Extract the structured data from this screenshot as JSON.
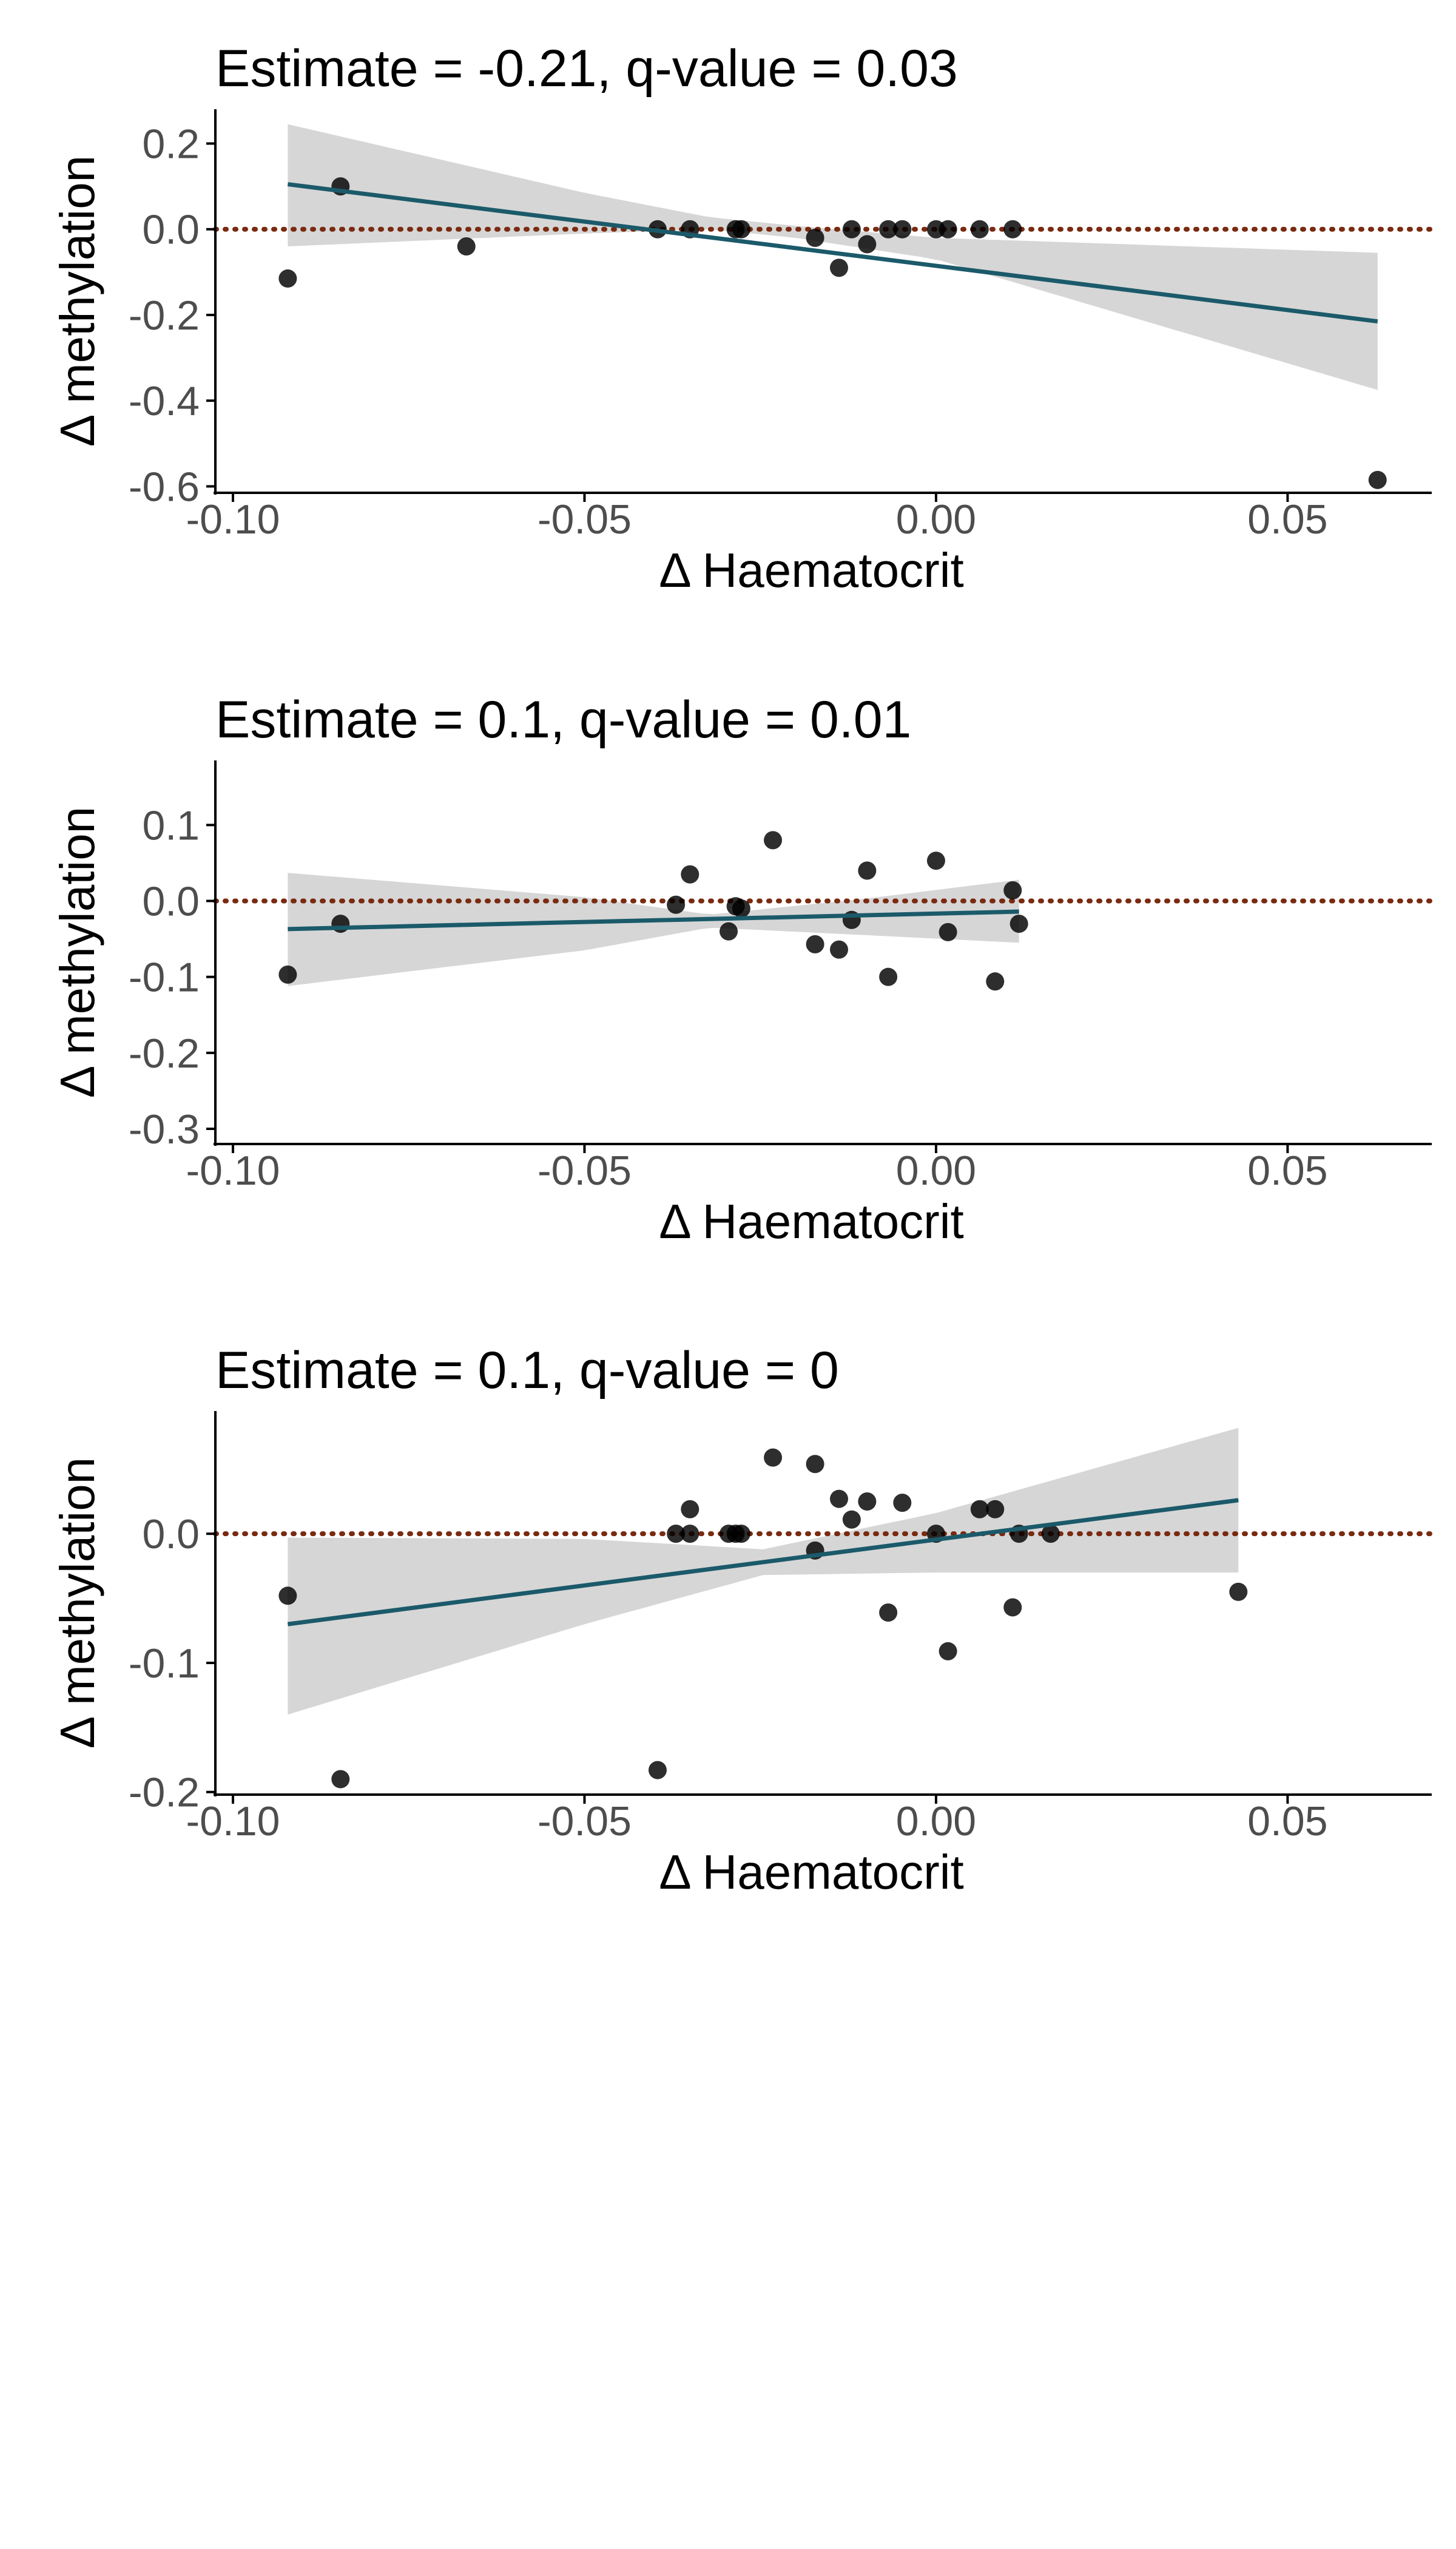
{
  "colors": {
    "background": "#ffffff",
    "points": "#000000",
    "fit_line": "#1b5a6a",
    "ci_band": "#d6d6d6",
    "zero_line": "#7a2a10",
    "axis": "#000000",
    "tick_label": "#4d4d4d",
    "title": "#000000"
  },
  "chart_data": [
    {
      "type": "scatter",
      "title": "Estimate = -0.21, q-value = 0.03",
      "xlabel": "Δ Haematocrit",
      "ylabel": "Δ methylation",
      "xlim": [
        -0.1025,
        0.0705
      ],
      "ylim": [
        -0.615,
        0.28
      ],
      "xticks": [
        -0.1,
        -0.05,
        0.0,
        0.05
      ],
      "xtick_labels": [
        "-0.10",
        "-0.05",
        "0.00",
        "0.05"
      ],
      "yticks": [
        0.2,
        0.0,
        -0.2,
        -0.4,
        -0.6
      ],
      "ytick_labels": [
        "0.2",
        "0.0",
        "-0.2",
        "-0.4",
        "-0.6"
      ],
      "grid": false,
      "reference_line_y": 0,
      "points": {
        "x": [
          -0.0922,
          -0.0847,
          -0.0668,
          -0.0396,
          -0.035,
          -0.0285,
          -0.0277,
          -0.0172,
          -0.0138,
          -0.012,
          -0.0098,
          -0.0068,
          -0.0048,
          0.0,
          0.0017,
          0.0062,
          0.0109,
          0.0628
        ],
        "y": [
          -0.115,
          0.1,
          -0.04,
          0.0,
          0.0,
          0.0,
          0.0,
          -0.02,
          -0.09,
          0.0,
          -0.035,
          0.0,
          0.0,
          0.0,
          0.0,
          0.0,
          0.0,
          -0.585
        ]
      },
      "fit": {
        "x": [
          -0.0922,
          0.0628
        ],
        "y": [
          0.105,
          -0.215
        ]
      },
      "ci": {
        "x": [
          -0.0922,
          -0.05,
          -0.0322,
          -0.02,
          0.0,
          0.0628
        ],
        "lower": [
          -0.04,
          -0.01,
          0.0,
          -0.02,
          -0.07,
          -0.375
        ],
        "upper": [
          0.245,
          0.085,
          0.028,
          0.008,
          -0.02,
          -0.055
        ]
      }
    },
    {
      "type": "scatter",
      "title": "Estimate = 0.1, q-value = 0.01",
      "xlabel": "Δ Haematocrit",
      "ylabel": "Δ methylation",
      "xlim": [
        -0.1025,
        0.0705
      ],
      "ylim": [
        -0.32,
        0.185
      ],
      "xticks": [
        -0.1,
        -0.05,
        0.0,
        0.05
      ],
      "xtick_labels": [
        "-0.10",
        "-0.05",
        "0.00",
        "0.05"
      ],
      "yticks": [
        0.1,
        0.0,
        -0.1,
        -0.2,
        -0.3
      ],
      "ytick_labels": [
        "0.1",
        "0.0",
        "-0.1",
        "-0.2",
        "-0.3"
      ],
      "grid": false,
      "reference_line_y": 0,
      "points": {
        "x": [
          -0.0922,
          -0.0847,
          -0.037,
          -0.035,
          -0.0295,
          -0.0285,
          -0.0277,
          -0.0232,
          -0.0172,
          -0.0138,
          -0.012,
          -0.0098,
          -0.0068,
          0.0,
          0.0017,
          0.0084,
          0.0109,
          0.0118
        ],
        "y": [
          -0.097,
          -0.03,
          -0.005,
          0.035,
          -0.04,
          -0.007,
          -0.01,
          0.08,
          -0.057,
          -0.064,
          -0.025,
          0.04,
          -0.1,
          0.053,
          -0.041,
          -0.106,
          0.014,
          -0.03
        ]
      },
      "fit": {
        "x": [
          -0.0922,
          0.0118
        ],
        "y": [
          -0.037,
          -0.014
        ]
      },
      "ci": {
        "x": [
          -0.0922,
          -0.05,
          -0.0322,
          -0.01,
          0.0118
        ],
        "lower": [
          -0.112,
          -0.065,
          -0.035,
          -0.045,
          -0.055
        ],
        "upper": [
          0.037,
          0.005,
          -0.018,
          0.003,
          0.028
        ]
      }
    },
    {
      "type": "scatter",
      "title": "Estimate = 0.1, q-value = 0",
      "xlabel": "Δ Haematocrit",
      "ylabel": "Δ methylation",
      "xlim": [
        -0.1025,
        0.0705
      ],
      "ylim": [
        -0.202,
        0.095
      ],
      "xticks": [
        -0.1,
        -0.05,
        0.0,
        0.05
      ],
      "xtick_labels": [
        "-0.10",
        "-0.05",
        "0.00",
        "0.05"
      ],
      "yticks": [
        0.0,
        -0.1,
        -0.2
      ],
      "ytick_labels": [
        "0.0",
        "-0.1",
        "-0.2"
      ],
      "grid": false,
      "reference_line_y": 0,
      "points": {
        "x": [
          -0.0922,
          -0.0847,
          -0.0396,
          -0.037,
          -0.035,
          -0.035,
          -0.0295,
          -0.0285,
          -0.0277,
          -0.0232,
          -0.0172,
          -0.0172,
          -0.0138,
          -0.012,
          -0.0098,
          -0.0068,
          -0.0048,
          0.0,
          0.0017,
          0.0062,
          0.0084,
          0.0109,
          0.0118,
          0.0163,
          0.043
        ],
        "y": [
          -0.048,
          -0.19,
          -0.183,
          0.0,
          0.019,
          0.0,
          0.0,
          0.0,
          0.0,
          0.059,
          -0.013,
          0.054,
          0.027,
          0.011,
          0.025,
          -0.061,
          0.024,
          0.0,
          -0.091,
          0.019,
          0.019,
          -0.057,
          0.0,
          0.0,
          -0.045
        ]
      },
      "fit": {
        "x": [
          -0.0922,
          0.043
        ],
        "y": [
          -0.07,
          0.026
        ]
      },
      "ci": {
        "x": [
          -0.0922,
          -0.05,
          -0.0246,
          0.0,
          0.043
        ],
        "lower": [
          -0.14,
          -0.07,
          -0.032,
          -0.03,
          -0.03
        ],
        "upper": [
          -0.003,
          -0.004,
          -0.012,
          0.016,
          0.082
        ]
      }
    }
  ]
}
